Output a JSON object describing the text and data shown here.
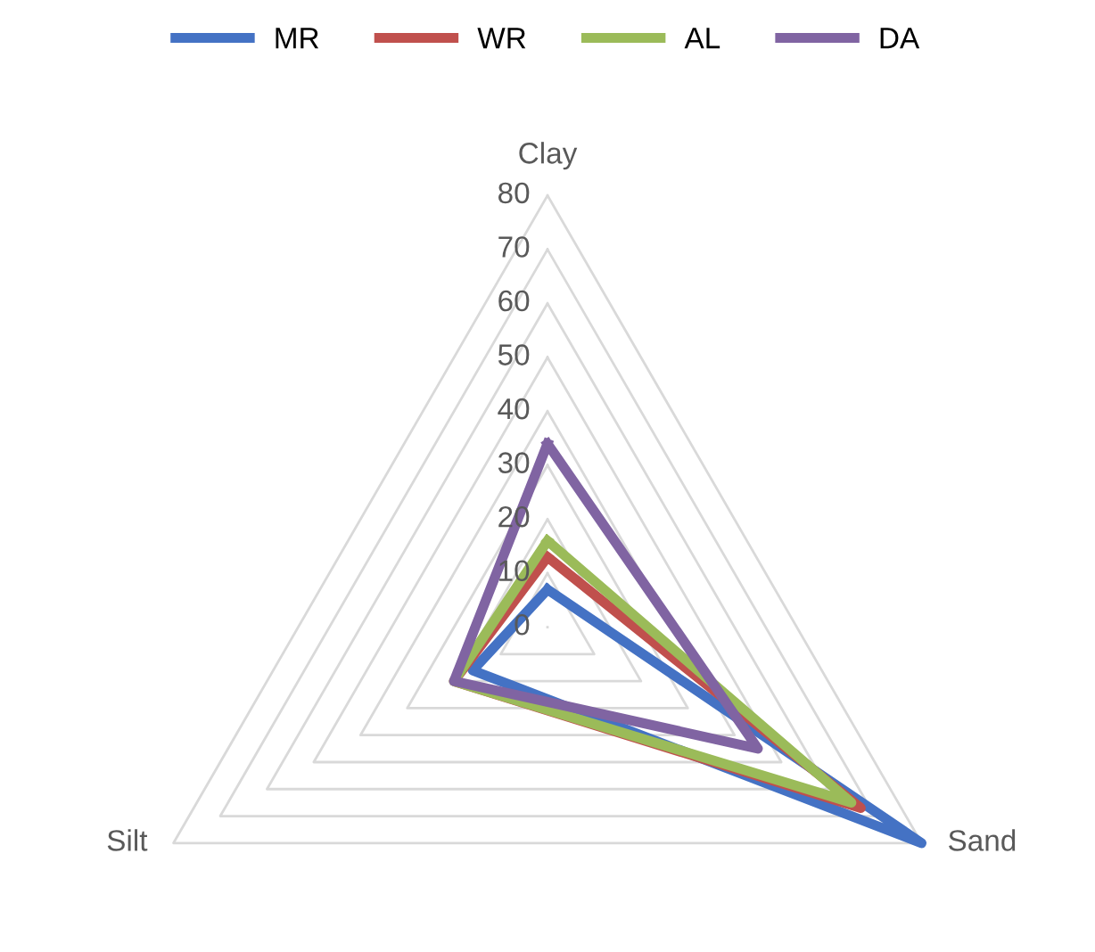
{
  "chart_data": {
    "type": "radar",
    "categories": [
      "Clay",
      "Sand",
      "Silt"
    ],
    "series": [
      {
        "name": "MR",
        "color": "#4472c4",
        "values": [
          7,
          80,
          16
        ]
      },
      {
        "name": "WR",
        "color": "#c0504d",
        "values": [
          13,
          67,
          20
        ]
      },
      {
        "name": "AL",
        "color": "#9bbb59",
        "values": [
          16,
          65,
          20
        ]
      },
      {
        "name": "DA",
        "color": "#8064a2",
        "values": [
          34,
          45,
          20
        ]
      }
    ],
    "ylim": [
      0,
      80
    ],
    "yticks": [
      0,
      10,
      20,
      30,
      40,
      50,
      60,
      70,
      80
    ],
    "grid": true,
    "legend": "top"
  }
}
